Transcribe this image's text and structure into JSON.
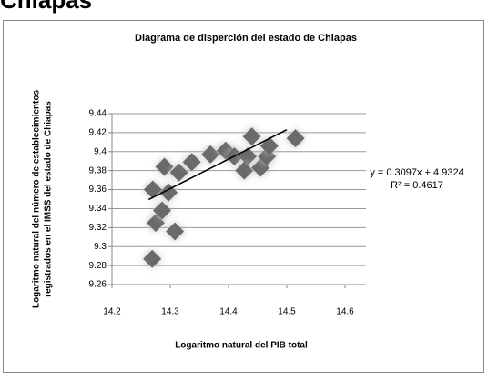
{
  "heading": "Chiapas",
  "chart_data": {
    "type": "scatter",
    "title": "Diagrama de disperción del estado de Chiapas",
    "x_label": "Logaritmo natural del PIB total",
    "y_label": [
      "Logaritmo natural del número de establecimientos",
      "registrados en el IMSS del estado de Chiapas"
    ],
    "annotations": [
      "y = 0.3097x + 4.9324",
      "R² = 0.4617"
    ],
    "x": [
      14.269,
      14.275,
      14.286,
      14.308,
      14.297,
      14.27,
      14.29,
      14.315,
      14.337,
      14.369,
      14.395,
      14.41,
      14.433,
      14.427,
      14.455,
      14.466,
      14.44,
      14.47,
      14.515
    ],
    "values": [
      9.287,
      9.325,
      9.338,
      9.316,
      9.357,
      9.36,
      9.384,
      9.378,
      9.389,
      9.397,
      9.401,
      9.395,
      9.395,
      9.38,
      9.383,
      9.395,
      9.416,
      9.406,
      9.414
    ],
    "color": "#6b6b6b",
    "trendline": {
      "x": [
        14.263,
        14.5
      ],
      "y": [
        9.3496,
        9.4231
      ],
      "color": "#000000"
    },
    "xlim": [
      14.2,
      14.6
    ],
    "xticks": [
      14.2,
      14.3,
      14.4,
      14.5,
      14.6
    ],
    "ylim": [
      9.26,
      9.44
    ],
    "yticks": [
      9.26,
      9.28,
      9.3,
      9.32,
      9.34,
      9.36,
      9.38,
      9.4,
      9.42,
      9.44
    ],
    "grid": true
  }
}
